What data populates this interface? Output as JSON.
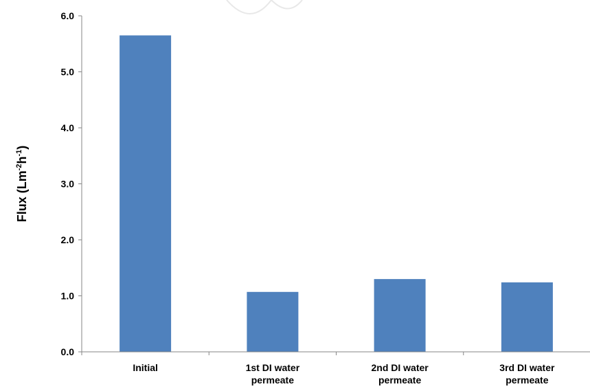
{
  "chart_data": {
    "type": "bar",
    "categories": [
      [
        "Initial"
      ],
      [
        "1st DI water",
        "permeate"
      ],
      [
        "2nd DI water",
        "permeate"
      ],
      [
        "3rd DI water",
        "permeate"
      ]
    ],
    "values": [
      5.65,
      1.07,
      1.3,
      1.24
    ],
    "ylabel": {
      "base": "Flux (Lm",
      "sup1": "-2",
      "mid": "h",
      "sup2": "-1",
      "end": ")"
    },
    "ylim": [
      0,
      6
    ],
    "yticks": [
      "0.0",
      "1.0",
      "2.0",
      "3.0",
      "4.0",
      "5.0",
      "6.0"
    ],
    "grid": false,
    "legend": "none",
    "bar_color": "#4f81bd",
    "axis_color": "#868686"
  }
}
